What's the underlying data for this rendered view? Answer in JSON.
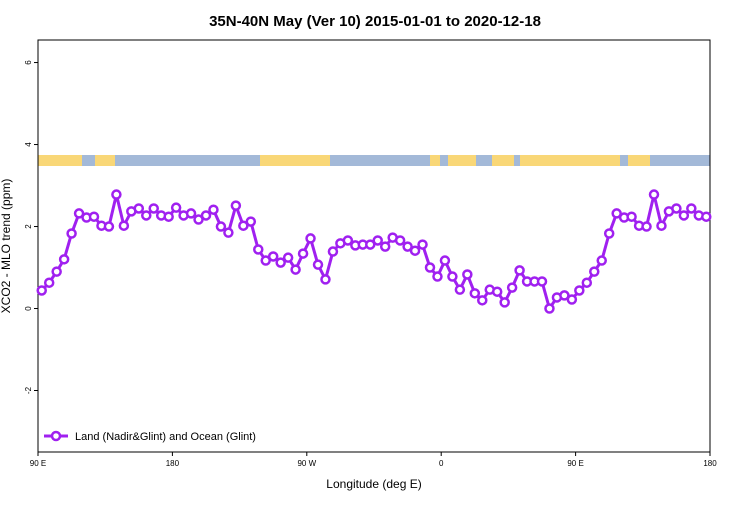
{
  "chart_data": {
    "type": "line",
    "title": "35N-40N May (Ver 10)   2015-01-01 to 2020-12-18",
    "x_label": "Longitude (deg E)",
    "y_label": "XCO2 - MLO trend (ppm)",
    "xlim": [
      90,
      540
    ],
    "ylim": [
      -3.5,
      6.55
    ],
    "xticks": [
      {
        "value": 90,
        "label": "90 E"
      },
      {
        "value": 180,
        "label": "180"
      },
      {
        "value": 270,
        "label": "90 W"
      },
      {
        "value": 360,
        "label": "0"
      },
      {
        "value": 450,
        "label": "90 E"
      },
      {
        "value": 540,
        "label": "180"
      }
    ],
    "yticks": [
      -2,
      0,
      2,
      4,
      6
    ],
    "legend": "bottom-left",
    "x": [
      92.5,
      97.5,
      102.5,
      107.5,
      112.5,
      117.5,
      122.5,
      127.5,
      132.5,
      137.5,
      142.5,
      147.5,
      152.5,
      157.5,
      162.5,
      167.5,
      172.5,
      177.5,
      182.5,
      187.5,
      192.5,
      197.5,
      202.5,
      207.5,
      212.5,
      217.5,
      222.5,
      227.5,
      232.5,
      237.5,
      242.5,
      247.5,
      252.5,
      257.5,
      262.5,
      267.5,
      272.5,
      277.5,
      282.5,
      287.5,
      292.5,
      297.5,
      302.5,
      307.5,
      312.5,
      317.5,
      322.5,
      327.5,
      332.5,
      337.5,
      342.5,
      347.5,
      352.5,
      357.5,
      362.5,
      367.5,
      372.5,
      377.5,
      382.5,
      387.5,
      392.5,
      397.5,
      402.5,
      407.5,
      412.5,
      417.5,
      422.5,
      427.5,
      432.5,
      437.5,
      442.5,
      447.5,
      452.5,
      457.5,
      462.5,
      467.5,
      472.5,
      477.5,
      482.5,
      487.5,
      492.5,
      497.5,
      502.5,
      507.5,
      512.5,
      517.5,
      522.5,
      527.5,
      532.5,
      537.5
    ],
    "series": [
      {
        "name": "Land (Nadir&Glint) and Ocean (Glint)",
        "color": "#a020f0",
        "values": [
          0.44,
          0.63,
          0.9,
          1.2,
          1.83,
          2.32,
          2.22,
          2.24,
          2.02,
          2.0,
          2.78,
          2.02,
          2.37,
          2.44,
          2.27,
          2.44,
          2.27,
          2.24,
          2.46,
          2.27,
          2.32,
          2.17,
          2.27,
          2.41,
          2.0,
          1.85,
          2.51,
          2.02,
          2.12,
          1.44,
          1.17,
          1.27,
          1.12,
          1.24,
          0.95,
          1.34,
          1.71,
          1.07,
          0.71,
          1.39,
          1.59,
          1.66,
          1.54,
          1.56,
          1.56,
          1.66,
          1.51,
          1.73,
          1.66,
          1.51,
          1.41,
          1.56,
          1.0,
          0.78,
          1.17,
          0.78,
          0.46,
          0.83,
          0.37,
          0.2,
          0.46,
          0.41,
          0.15,
          0.51,
          0.93,
          0.66,
          0.66,
          0.66,
          0.0,
          0.27,
          0.32,
          0.22,
          0.44,
          0.63,
          0.9,
          1.17,
          1.83,
          2.32,
          2.22,
          2.24,
          2.02,
          2.0,
          2.78,
          2.02,
          2.37,
          2.44,
          2.27,
          2.44,
          2.27,
          2.24
        ]
      }
    ]
  }
}
